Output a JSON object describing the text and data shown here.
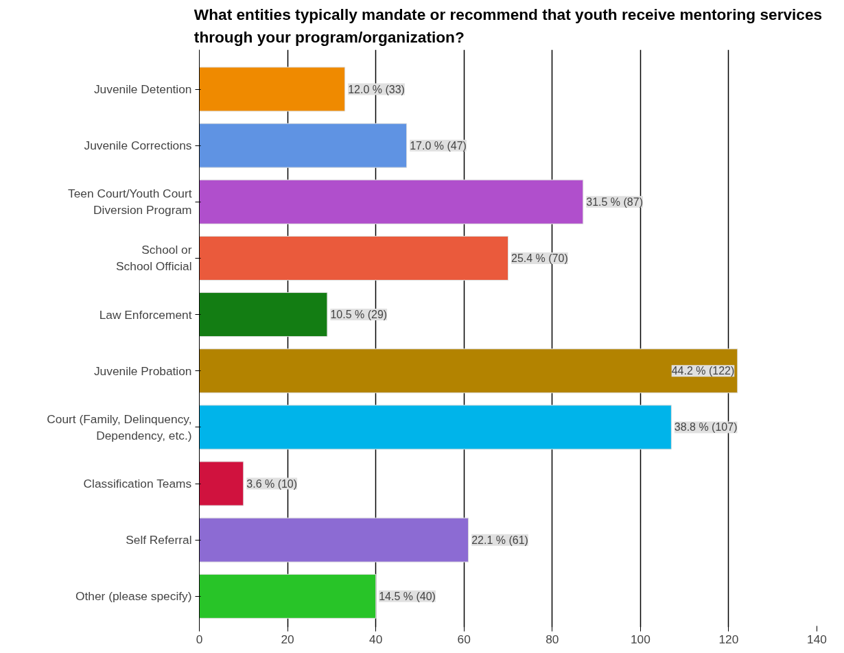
{
  "chart_data": {
    "type": "bar",
    "orientation": "horizontal",
    "title": "What entities typically mandate or recommend that youth receive mentoring services\nthrough your program/organization?",
    "categories": [
      "Juvenile Detention",
      "Juvenile Corrections",
      "Teen Court/Youth Court\nDiversion Program",
      "School or\nSchool Official",
      "Law Enforcement",
      "Juvenile Probation",
      "Court (Family, Delinquency,\nDependency, etc.)",
      "Classification Teams",
      "Self Referral",
      "Other (please specify)"
    ],
    "values": [
      33,
      47,
      87,
      70,
      29,
      122,
      107,
      10,
      61,
      40
    ],
    "colors": [
      "#ef8a00",
      "#5f93e3",
      "#b04fcc",
      "#ea5a3c",
      "#137d13",
      "#b38300",
      "#00b4ea",
      "#d0123e",
      "#8c6bd3",
      "#28c428"
    ],
    "value_labels": [
      "12.0 % (33)",
      "17.0 % (47)",
      "31.5 % (87)",
      "25.4 % (70)",
      "10.5 % (29)",
      "44.2 % (122)",
      "38.8 % (107)",
      "3.6 % (10)",
      "22.1 % (61)",
      "14.5 % (40)"
    ],
    "xlim": [
      0,
      140
    ],
    "xticks": [
      0,
      20,
      40,
      60,
      80,
      100,
      120,
      140
    ],
    "grid": "x"
  }
}
